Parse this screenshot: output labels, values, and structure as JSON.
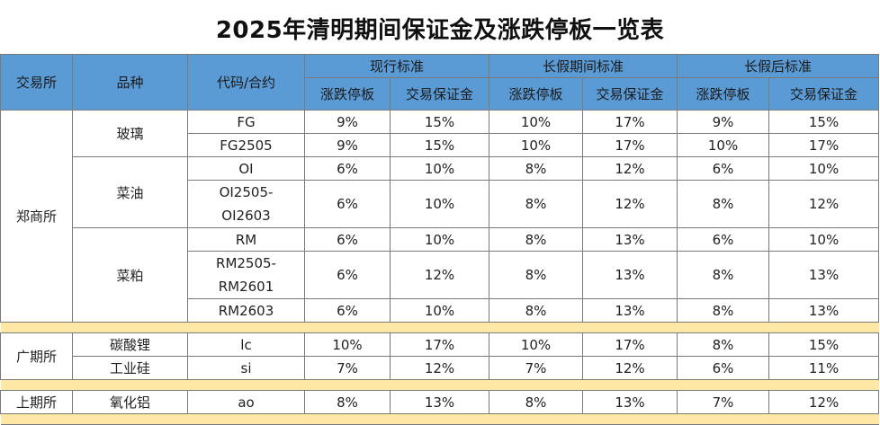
{
  "title": "2025年清明期间保证金及涨跌停板一览表",
  "headers": {
    "exchange": "交易所",
    "product": "品种",
    "code": "代码/合约",
    "groups": [
      "现行标准",
      "长假期间标准",
      "长假后标准"
    ],
    "sub": [
      "涨跌停板",
      "交易保证金",
      "涨跌停板",
      "交易保证金",
      "涨跌停板",
      "交易保证金"
    ]
  },
  "sections": [
    {
      "exchange": "郑商所",
      "products": [
        {
          "name": "玻璃",
          "rows": [
            {
              "code": [
                "FG"
              ],
              "values": [
                "9%",
                "15%",
                "10%",
                "17%",
                "9%",
                "15%"
              ]
            },
            {
              "code": [
                "FG2505"
              ],
              "values": [
                "9%",
                "15%",
                "10%",
                "17%",
                "10%",
                "17%"
              ]
            }
          ]
        },
        {
          "name": "菜油",
          "rows": [
            {
              "code": [
                "OI"
              ],
              "values": [
                "6%",
                "10%",
                "8%",
                "12%",
                "6%",
                "10%"
              ]
            },
            {
              "code": [
                "OI2505-",
                "OI2603"
              ],
              "values": [
                "6%",
                "10%",
                "8%",
                "12%",
                "8%",
                "12%"
              ]
            }
          ]
        },
        {
          "name": "菜粕",
          "rows": [
            {
              "code": [
                "RM"
              ],
              "values": [
                "6%",
                "10%",
                "8%",
                "13%",
                "6%",
                "10%"
              ]
            },
            {
              "code": [
                "RM2505-",
                "RM2601"
              ],
              "values": [
                "6%",
                "12%",
                "8%",
                "13%",
                "8%",
                "13%"
              ]
            },
            {
              "code": [
                "RM2603"
              ],
              "values": [
                "6%",
                "10%",
                "8%",
                "13%",
                "8%",
                "13%"
              ]
            }
          ]
        }
      ]
    },
    {
      "exchange": "广期所",
      "products": [
        {
          "name": "碳酸锂",
          "rows": [
            {
              "code": [
                "lc"
              ],
              "values": [
                "10%",
                "17%",
                "10%",
                "17%",
                "8%",
                "15%"
              ]
            }
          ]
        },
        {
          "name": "工业硅",
          "rows": [
            {
              "code": [
                "si"
              ],
              "values": [
                "7%",
                "12%",
                "7%",
                "12%",
                "6%",
                "11%"
              ]
            }
          ]
        }
      ]
    },
    {
      "exchange": "上期所",
      "products": [
        {
          "name": "氧化铝",
          "rows": [
            {
              "code": [
                "ao"
              ],
              "values": [
                "8%",
                "13%",
                "8%",
                "13%",
                "7%",
                "12%"
              ]
            }
          ]
        }
      ]
    }
  ],
  "colors": {
    "header_fill": "#5b9bd5",
    "separator_fill": "#ffe8a6",
    "border": "#7a7a7a"
  }
}
